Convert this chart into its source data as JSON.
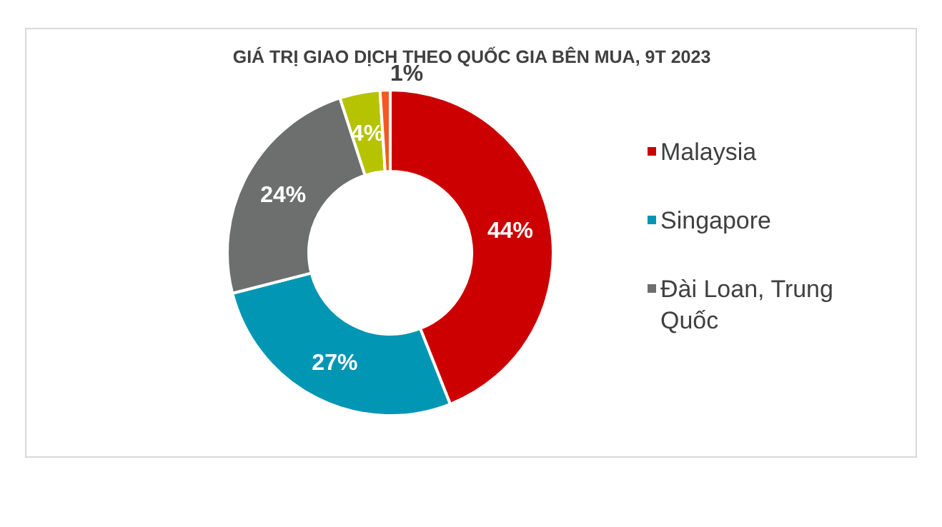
{
  "chart_data": {
    "type": "donut",
    "title": "GIÁ TRỊ GIAO DỊCH THEO QUỐC GIA BÊN MUA, 9T 2023",
    "categories": [
      "Malaysia",
      "Singapore",
      "Đài Loan, Trung Quốc",
      null,
      null
    ],
    "values": [
      44,
      27,
      24,
      4,
      1
    ],
    "value_labels": [
      "44%",
      "27%",
      "24%",
      "4%",
      "1%"
    ],
    "colors": [
      "#cc0000",
      "#0096b4",
      "#6d6e6e",
      "#b5c300",
      "#f05a22"
    ],
    "legend": "right"
  }
}
